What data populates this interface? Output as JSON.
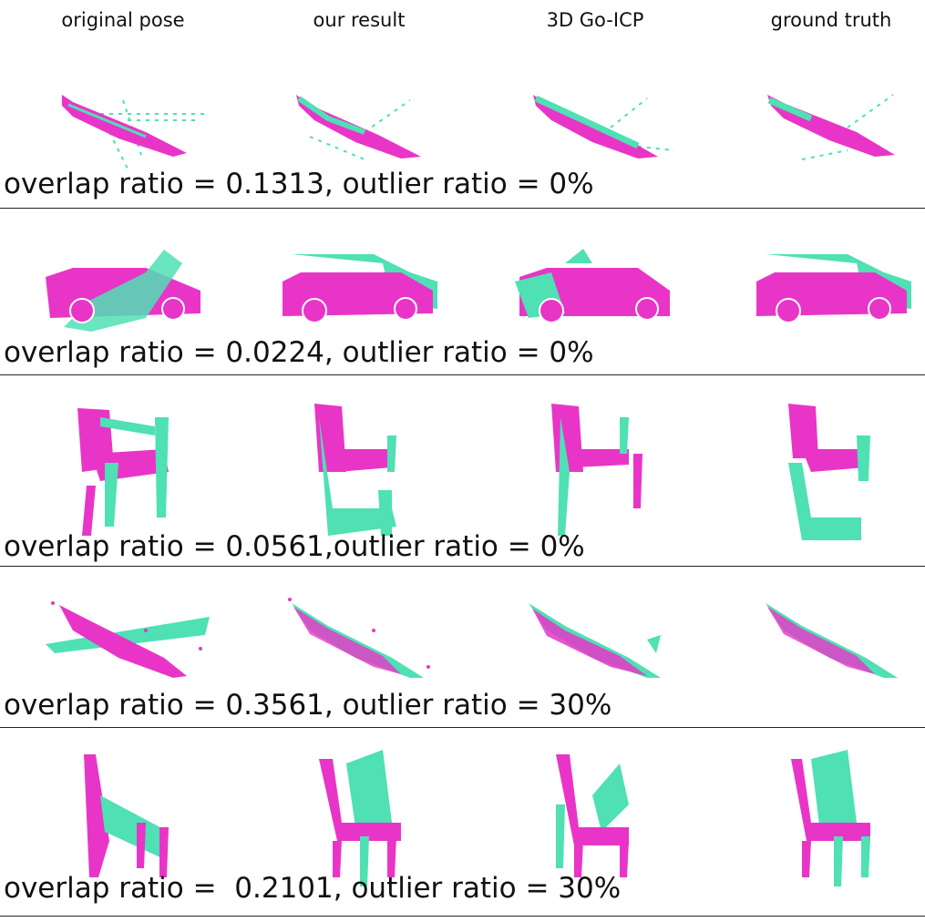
{
  "columns": [
    "original pose",
    "our result",
    "3D Go-ICP",
    "ground truth"
  ],
  "rows": [
    {
      "object": "airplane",
      "caption": "overlap ratio = 0.1313, outlier ratio = 0%"
    },
    {
      "object": "car",
      "caption": "overlap ratio = 0.0224, outlier ratio = 0%"
    },
    {
      "object": "chair",
      "caption": "overlap ratio = 0.0561,outlier ratio = 0%"
    },
    {
      "object": "airplane",
      "caption": "overlap ratio = 0.3561, outlier ratio = 30%"
    },
    {
      "object": "chair",
      "caption": "overlap ratio =  0.2101, outlier ratio = 30%"
    }
  ],
  "colors": {
    "source": "#e835c8",
    "target": "#4fe0b4"
  }
}
